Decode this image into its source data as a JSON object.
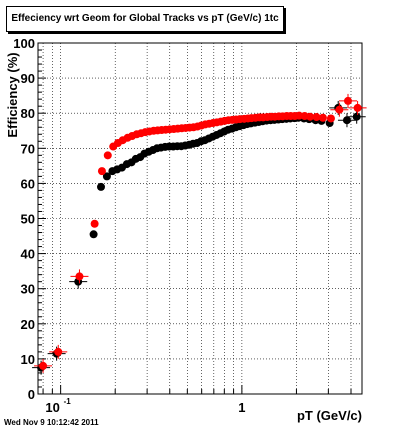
{
  "chart_data": {
    "type": "scatter",
    "title": "Effeciency wrt Geom for Global Tracks vs pT (GeV/c) 1tc",
    "xlabel": "pT (GeV/c)",
    "ylabel": "Efficiency (%)",
    "xscale": "log",
    "xlim": [
      0.075,
      4.6
    ],
    "ylim": [
      0,
      100
    ],
    "grid": true,
    "yticks": [
      0,
      10,
      20,
      30,
      40,
      50,
      60,
      70,
      80,
      90,
      100
    ],
    "yticklabels": [
      "0",
      "10",
      "20",
      "30",
      "40",
      "50",
      "60",
      "70",
      "80",
      "90",
      "100"
    ],
    "xticks": [
      0.1,
      1
    ],
    "xticklabels": [
      "10^-1",
      "1"
    ],
    "series": [
      {
        "color": "#000000",
        "x": [
          0.078,
          0.095,
          0.125,
          0.152,
          0.167,
          0.18,
          0.193,
          0.205,
          0.218,
          0.232,
          0.246,
          0.26,
          0.275,
          0.29,
          0.306,
          0.323,
          0.34,
          0.358,
          0.377,
          0.397,
          0.418,
          0.44,
          0.463,
          0.487,
          0.512,
          0.538,
          0.566,
          0.595,
          0.625,
          0.657,
          0.69,
          0.725,
          0.762,
          0.8,
          0.84,
          0.882,
          0.926,
          0.972,
          1.02,
          1.07,
          1.12,
          1.18,
          1.24,
          1.3,
          1.37,
          1.44,
          1.51,
          1.59,
          1.67,
          1.76,
          1.85,
          1.95,
          2.05,
          2.2,
          2.35,
          2.55,
          2.75,
          3.05,
          3.4,
          3.8,
          4.3
        ],
        "y": [
          7.5,
          11.5,
          32,
          45.5,
          59,
          62,
          63.5,
          64,
          64.5,
          65.5,
          66,
          67,
          67.5,
          68.5,
          69,
          69.5,
          70,
          70.2,
          70.4,
          70.5,
          70.5,
          70.6,
          70.6,
          70.8,
          71,
          71.3,
          71.5,
          72,
          72.3,
          72.8,
          73.3,
          73.8,
          74.3,
          74.8,
          75.3,
          75.6,
          76,
          76.3,
          76.6,
          76.9,
          77.1,
          77.3,
          77.5,
          77.7,
          77.9,
          78,
          78.1,
          78.2,
          78.3,
          78.4,
          78.5,
          78.6,
          78.7,
          78.5,
          78.3,
          78,
          77.8,
          77.2,
          81.5,
          78,
          79
        ]
      },
      {
        "color": "#ff0000",
        "x": [
          0.08,
          0.097,
          0.127,
          0.154,
          0.169,
          0.182,
          0.195,
          0.207,
          0.22,
          0.234,
          0.248,
          0.263,
          0.278,
          0.293,
          0.309,
          0.326,
          0.343,
          0.361,
          0.38,
          0.4,
          0.421,
          0.443,
          0.466,
          0.49,
          0.515,
          0.541,
          0.569,
          0.598,
          0.628,
          0.66,
          0.693,
          0.728,
          0.765,
          0.803,
          0.843,
          0.885,
          0.929,
          0.975,
          1.03,
          1.08,
          1.13,
          1.19,
          1.25,
          1.31,
          1.38,
          1.45,
          1.52,
          1.6,
          1.68,
          1.77,
          1.86,
          1.96,
          2.07,
          2.22,
          2.38,
          2.58,
          2.8,
          3.1,
          3.45,
          3.85,
          4.35
        ],
        "y": [
          8,
          12,
          33.5,
          48.5,
          63.5,
          68,
          70.5,
          71.5,
          72.3,
          73,
          73.5,
          74,
          74.3,
          74.6,
          74.8,
          75,
          75.1,
          75.2,
          75.3,
          75.4,
          75.5,
          75.6,
          75.7,
          75.8,
          75.9,
          76,
          76.2,
          76.5,
          76.8,
          77,
          77.2,
          77.4,
          77.6,
          77.8,
          78,
          78.1,
          78.2,
          78.3,
          78.4,
          78.5,
          78.6,
          78.7,
          78.8,
          78.8,
          78.9,
          79,
          79,
          79.1,
          79.1,
          79.2,
          79.2,
          79.2,
          79.3,
          79.2,
          79,
          78.9,
          78.7,
          78.5,
          81,
          83.5,
          81.5
        ]
      }
    ]
  },
  "footer": {
    "timestamp": "Wed Nov  9 10:12:42 2011"
  }
}
